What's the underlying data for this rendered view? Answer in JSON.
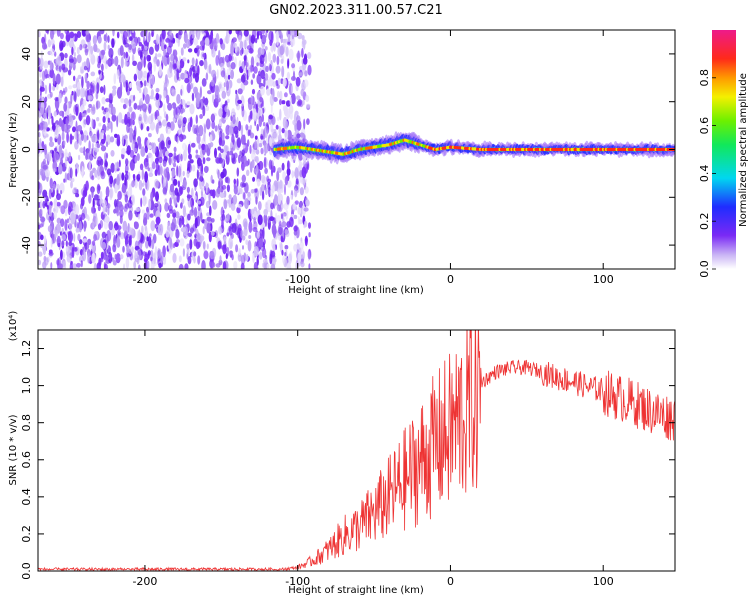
{
  "title": "GN02.2023.311.00.57.C21",
  "colors": {
    "snr_line": "#ee3333",
    "spectrogram_noise": "#7b2ff7",
    "axis": "#000000"
  },
  "chart_data": [
    {
      "type": "heatmap",
      "title": "GN02.2023.311.00.57.C21",
      "xlabel": "Height of straight line (km)",
      "ylabel": "Frequency (Hz)",
      "xlim": [
        -270,
        147
      ],
      "ylim": [
        -50,
        50
      ],
      "x_ticks": [
        -200,
        -100,
        0,
        100
      ],
      "y_ticks": [
        -40,
        -20,
        0,
        20,
        40
      ],
      "colorbar": {
        "label": "Normalized spectral amplitude",
        "range": [
          0,
          1
        ],
        "ticks": [
          "0.0",
          "0.2",
          "0.4",
          "0.6",
          "0.8"
        ],
        "colormap": "rainbow (purple-blue-cyan-green-yellow-red-magenta)"
      },
      "noise_region_x": [
        -270,
        -100
      ],
      "signal_track": {
        "x": [
          -115,
          -100,
          -90,
          -80,
          -70,
          -60,
          -50,
          -40,
          -30,
          -20,
          -10,
          0,
          20,
          40,
          60,
          80,
          100,
          120,
          147
        ],
        "frequency": [
          0,
          1,
          0,
          -1,
          -2,
          0,
          1,
          2,
          4,
          2,
          0,
          1,
          0,
          0,
          0,
          0,
          0,
          0,
          0
        ]
      }
    },
    {
      "type": "line",
      "xlabel": "Height of straight line (km)",
      "ylabel": "SNR (10 * v/v)",
      "ylabel_scale": "(x10⁴)",
      "xlim": [
        -270,
        147
      ],
      "ylim": [
        0,
        1.3
      ],
      "x_ticks": [
        -200,
        -100,
        0,
        100
      ],
      "y_ticks": [
        "0.0",
        "0.2",
        "0.4",
        "0.6",
        "0.8",
        "1.0",
        "1.2"
      ],
      "series": [
        {
          "x": [
            -270,
            -200,
            -150,
            -110,
            -100,
            -90,
            -80,
            -70,
            -60,
            -50,
            -40,
            -30,
            -20,
            -10,
            0,
            10,
            20,
            30,
            40,
            50,
            60,
            70,
            80,
            90,
            100,
            110,
            120,
            130,
            140,
            147
          ],
          "y": [
            0.01,
            0.01,
            0.01,
            0.01,
            0.02,
            0.06,
            0.12,
            0.2,
            0.25,
            0.33,
            0.42,
            0.52,
            0.62,
            0.72,
            0.8,
            0.92,
            1.02,
            1.08,
            1.1,
            1.1,
            1.08,
            1.05,
            1.03,
            1.0,
            0.98,
            0.95,
            0.92,
            0.88,
            0.85,
            0.84
          ]
        }
      ]
    }
  ]
}
